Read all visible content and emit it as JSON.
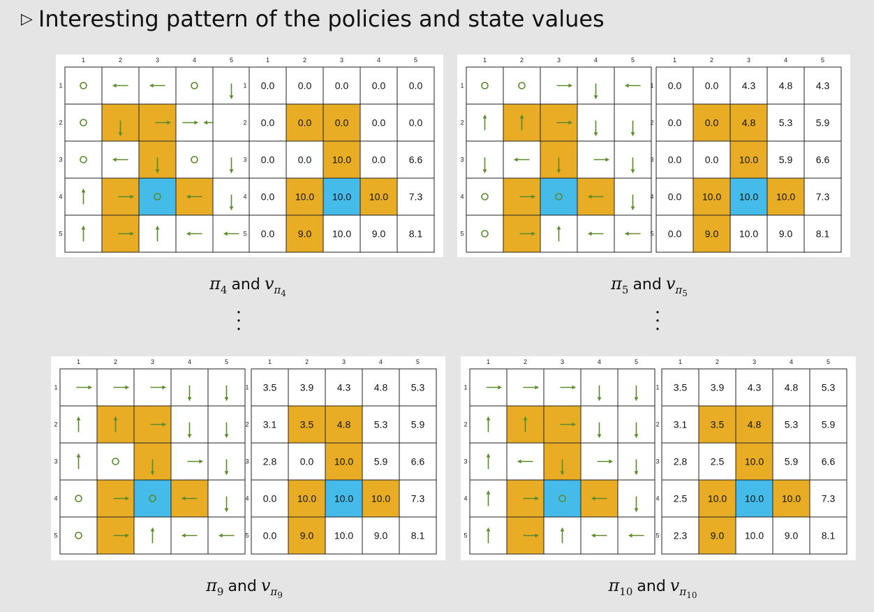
{
  "heading": {
    "bullet": "▷",
    "text": "Interesting pattern of the policies and state values"
  },
  "colors": {
    "forbidden": "#e8ad24",
    "target": "#44bbe9",
    "arrow": "#5a8a2a",
    "grid": "#222222",
    "background": "#e5e5e5"
  },
  "grid_size": 5,
  "col_headers": [
    "1",
    "2",
    "3",
    "4",
    "5"
  ],
  "row_headers": [
    "1",
    "2",
    "3",
    "4",
    "5"
  ],
  "forbidden_cells": [
    [
      2,
      2
    ],
    [
      2,
      3
    ],
    [
      3,
      3
    ],
    [
      4,
      2
    ],
    [
      4,
      4
    ],
    [
      5,
      2
    ]
  ],
  "target_cell": [
    4,
    3
  ],
  "panels": [
    {
      "id": "pi4",
      "caption": {
        "pi_sub": "4",
        "v_sub_sub": "4"
      },
      "policy": [
        [
          "stay",
          "left",
          "left",
          "stay",
          "down"
        ],
        [
          "stay",
          "down",
          "right",
          "right-left",
          ""
        ],
        [
          "stay",
          "left",
          "down",
          "stay",
          "down"
        ],
        [
          "up",
          "right",
          "stay",
          "left",
          "down"
        ],
        [
          "up",
          "right",
          "up",
          "left",
          "left"
        ]
      ],
      "values": [
        [
          "0.0",
          "0.0",
          "0.0",
          "0.0",
          "0.0"
        ],
        [
          "0.0",
          "0.0",
          "0.0",
          "0.0",
          "0.0"
        ],
        [
          "0.0",
          "0.0",
          "10.0",
          "0.0",
          "6.6"
        ],
        [
          "0.0",
          "10.0",
          "10.0",
          "10.0",
          "7.3"
        ],
        [
          "0.0",
          "9.0",
          "10.0",
          "9.0",
          "8.1"
        ]
      ]
    },
    {
      "id": "pi5",
      "caption": {
        "pi_sub": "5",
        "v_sub_sub": "5"
      },
      "policy": [
        [
          "stay",
          "stay",
          "right",
          "down",
          "left"
        ],
        [
          "up",
          "up",
          "right",
          "down",
          "down"
        ],
        [
          "down",
          "left",
          "down",
          "right",
          "down"
        ],
        [
          "stay",
          "right",
          "stay",
          "left",
          "down"
        ],
        [
          "stay",
          "right",
          "up",
          "left",
          "left"
        ]
      ],
      "values": [
        [
          "0.0",
          "0.0",
          "4.3",
          "4.8",
          "4.3"
        ],
        [
          "0.0",
          "0.0",
          "4.8",
          "5.3",
          "5.9"
        ],
        [
          "0.0",
          "0.0",
          "10.0",
          "5.9",
          "6.6"
        ],
        [
          "0.0",
          "10.0",
          "10.0",
          "10.0",
          "7.3"
        ],
        [
          "0.0",
          "9.0",
          "10.0",
          "9.0",
          "8.1"
        ]
      ]
    },
    {
      "id": "pi9",
      "caption": {
        "pi_sub": "9",
        "v_sub_sub": "9"
      },
      "policy": [
        [
          "right",
          "right",
          "right",
          "down",
          "down"
        ],
        [
          "up",
          "up",
          "right",
          "down",
          "down"
        ],
        [
          "up",
          "stay",
          "down",
          "right",
          "down"
        ],
        [
          "stay",
          "right",
          "stay",
          "left",
          "down"
        ],
        [
          "stay",
          "right",
          "up",
          "left",
          "left"
        ]
      ],
      "values": [
        [
          "3.5",
          "3.9",
          "4.3",
          "4.8",
          "5.3"
        ],
        [
          "3.1",
          "3.5",
          "4.8",
          "5.3",
          "5.9"
        ],
        [
          "2.8",
          "0.0",
          "10.0",
          "5.9",
          "6.6"
        ],
        [
          "0.0",
          "10.0",
          "10.0",
          "10.0",
          "7.3"
        ],
        [
          "0.0",
          "9.0",
          "10.0",
          "9.0",
          "8.1"
        ]
      ]
    },
    {
      "id": "pi10",
      "caption": {
        "pi_sub": "10",
        "v_sub_sub": "10"
      },
      "policy": [
        [
          "right",
          "right",
          "right",
          "down",
          "down"
        ],
        [
          "up",
          "up",
          "right",
          "down",
          "down"
        ],
        [
          "up",
          "left",
          "down",
          "right",
          "down"
        ],
        [
          "up",
          "right",
          "stay",
          "left",
          "down"
        ],
        [
          "up",
          "right",
          "up",
          "left",
          "left"
        ]
      ],
      "values": [
        [
          "3.5",
          "3.9",
          "4.3",
          "4.8",
          "5.3"
        ],
        [
          "3.1",
          "3.5",
          "4.8",
          "5.3",
          "5.9"
        ],
        [
          "2.8",
          "2.5",
          "10.0",
          "5.9",
          "6.6"
        ],
        [
          "2.5",
          "10.0",
          "10.0",
          "10.0",
          "7.3"
        ],
        [
          "2.3",
          "9.0",
          "10.0",
          "9.0",
          "8.1"
        ]
      ]
    }
  ]
}
